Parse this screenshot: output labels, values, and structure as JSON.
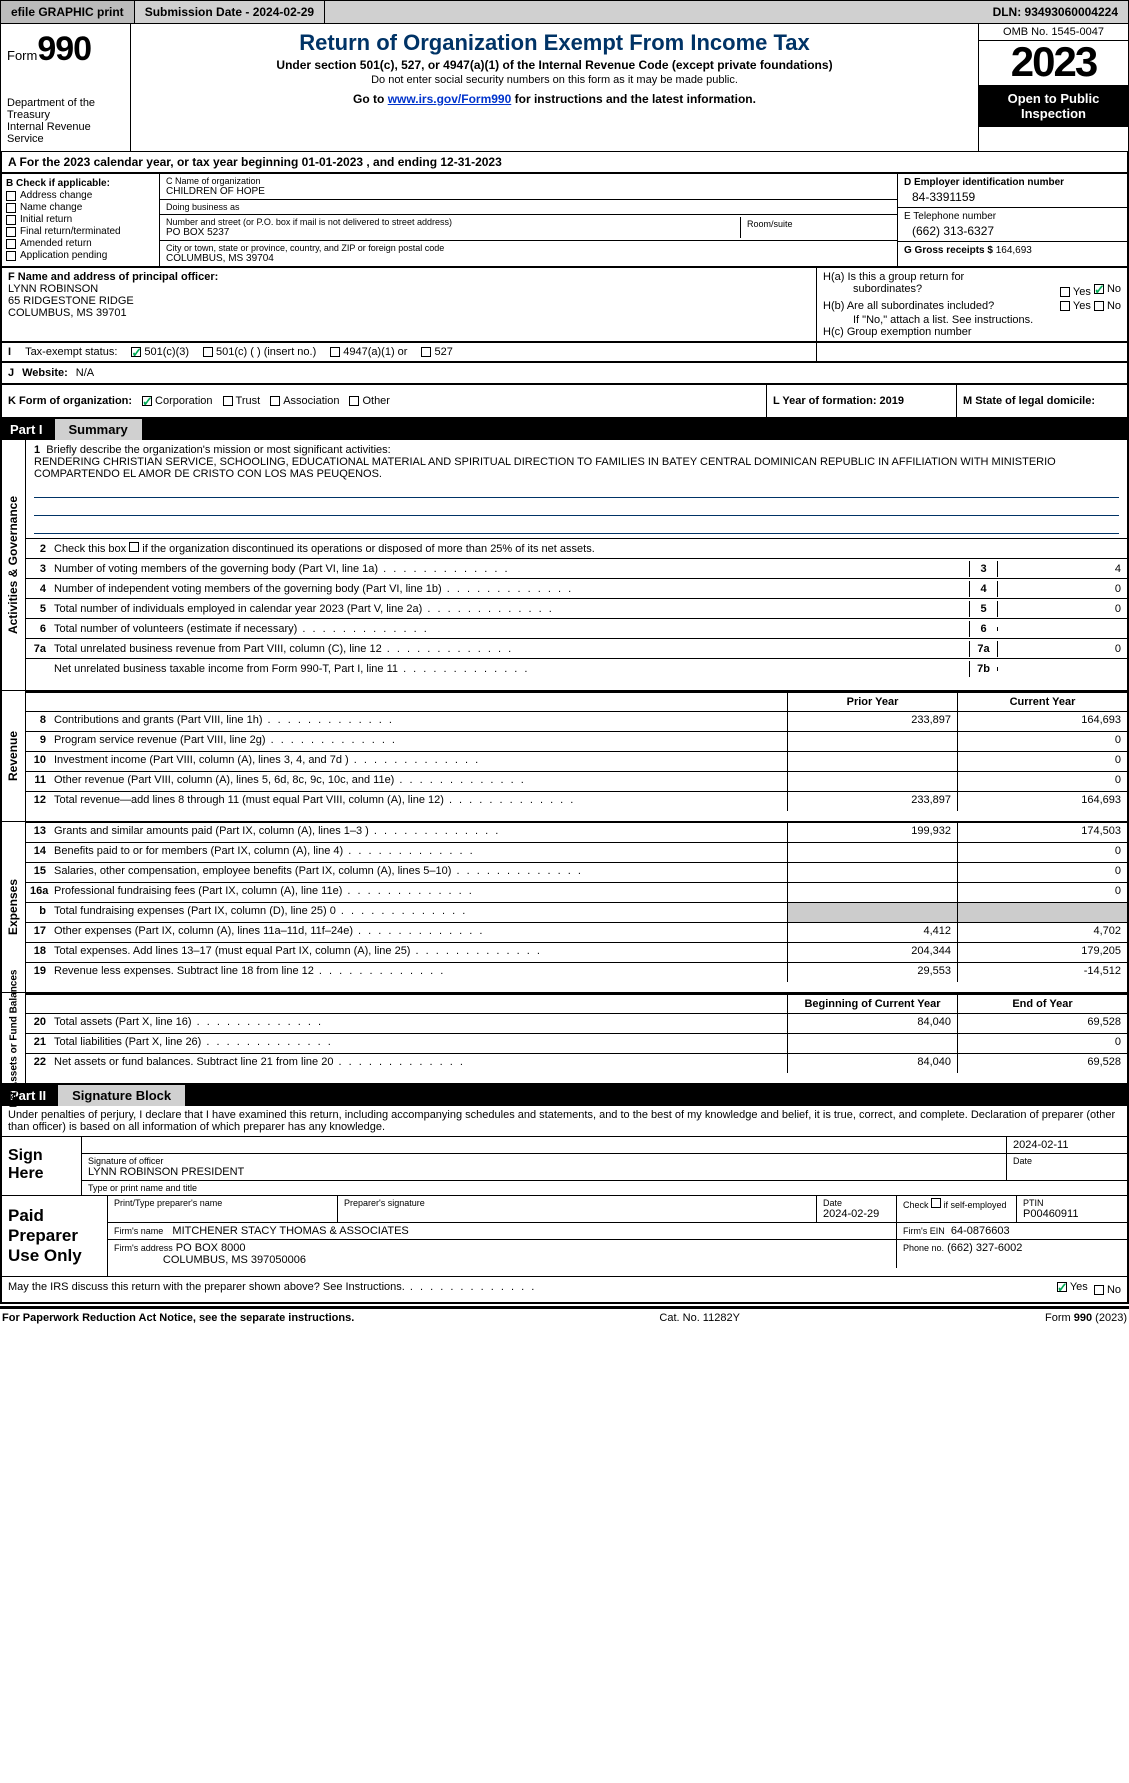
{
  "topbar": {
    "efile": "efile GRAPHIC print",
    "submission_label": "Submission Date - 2024-02-29",
    "dln_label": "DLN: 93493060004224"
  },
  "header": {
    "form_word": "Form",
    "form_no": "990",
    "title": "Return of Organization Exempt From Income Tax",
    "subtitle": "Under section 501(c), 527, or 4947(a)(1) of the Internal Revenue Code (except private foundations)",
    "note": "Do not enter social security numbers on this form as it may be made public.",
    "goto_pre": "Go to ",
    "goto_link": "www.irs.gov/Form990",
    "goto_post": " for instructions and the latest information.",
    "dept": "Department of the Treasury",
    "irs": "Internal Revenue Service",
    "omb": "OMB No. 1545-0047",
    "year": "2023",
    "open1": "Open to Public",
    "open2": "Inspection"
  },
  "period": "A  For the 2023 calendar year, or tax year beginning 01-01-2023        , and ending 12-31-2023",
  "B": {
    "head": "B Check if applicable:",
    "opts": [
      "Address change",
      "Name change",
      "Initial return",
      "Final return/terminated",
      "Amended return",
      "Application pending"
    ]
  },
  "C": {
    "name_lbl": "C Name of organization",
    "name": "CHILDREN OF HOPE",
    "dba_lbl": "Doing business as",
    "dba": "",
    "street_lbl": "Number and street (or P.O. box if mail is not delivered to street address)",
    "street": "PO BOX 5237",
    "room_lbl": "Room/suite",
    "city_lbl": "City or town, state or province, country, and ZIP or foreign postal code",
    "city": "COLUMBUS, MS  39704"
  },
  "D": {
    "lbl": "D Employer identification number",
    "val": "84-3391159"
  },
  "E": {
    "lbl": "E Telephone number",
    "val": "(662) 313-6327"
  },
  "G": {
    "lbl": "G Gross receipts $",
    "val": "164,693"
  },
  "F": {
    "lbl": "F  Name and address of principal officer:",
    "l1": "LYNN ROBINSON",
    "l2": "65 RIDGESTONE RIDGE",
    "l3": "COLUMBUS, MS  39701"
  },
  "H": {
    "a": "H(a)  Is this a group return for",
    "a2": "subordinates?",
    "b": "H(b)  Are all subordinates included?",
    "bnote": "If \"No,\" attach a list. See instructions.",
    "c": "H(c)  Group exemption number",
    "yes": "Yes",
    "no": "No"
  },
  "I": {
    "lbl": "I",
    "txt": "Tax-exempt status:",
    "o1": "501(c)(3)",
    "o2": "501(c) (  ) (insert no.)",
    "o3": "4947(a)(1) or",
    "o4": "527"
  },
  "J": {
    "lbl": "J",
    "txt": "Website:",
    "val": "N/A"
  },
  "K": {
    "lbl": "K Form of organization:",
    "o1": "Corporation",
    "o2": "Trust",
    "o3": "Association",
    "o4": "Other"
  },
  "L": {
    "lbl": "L Year of formation: 2019"
  },
  "M": {
    "lbl": "M State of legal domicile:"
  },
  "part1": {
    "num": "Part I",
    "title": "Summary"
  },
  "s1": {
    "n": "1",
    "t": "Briefly describe the organization's mission or most significant activities:",
    "m": "RENDERING CHRISTIAN SERVICE, SCHOOLING, EDUCATIONAL MATERIAL AND SPIRITUAL DIRECTION TO FAMILIES IN BATEY CENTRAL DOMINICAN REPUBLIC IN AFFILIATION WITH MINISTERIO COMPARTENDO EL AMOR DE CRISTO CON LOS MAS PEUQENOS."
  },
  "s2": {
    "n": "2",
    "t": "Check this box            if the organization discontinued its operations or disposed of more than 25% of its net assets."
  },
  "r3": {
    "n": "3",
    "t": "Number of voting members of the governing body (Part VI, line 1a)",
    "b": "3",
    "v": "4"
  },
  "r4": {
    "n": "4",
    "t": "Number of independent voting members of the governing body (Part VI, line 1b)",
    "b": "4",
    "v": "0"
  },
  "r5": {
    "n": "5",
    "t": "Total number of individuals employed in calendar year 2023 (Part V, line 2a)",
    "b": "5",
    "v": "0"
  },
  "r6": {
    "n": "6",
    "t": "Total number of volunteers (estimate if necessary)",
    "b": "6",
    "v": ""
  },
  "r7a": {
    "n": "7a",
    "t": "Total unrelated business revenue from Part VIII, column (C), line 12",
    "b": "7a",
    "v": "0"
  },
  "r7b": {
    "n": "",
    "t": "Net unrelated business taxable income from Form 990-T, Part I, line 11",
    "b": "7b",
    "v": ""
  },
  "vh": {
    "ag": "Activities & Governance",
    "rev": "Revenue",
    "exp": "Expenses",
    "nab": "Net Assets or Fund Balances"
  },
  "cols": {
    "py": "Prior Year",
    "cy": "Current Year",
    "bcy": "Beginning of Current Year",
    "eoy": "End of Year"
  },
  "rev": [
    {
      "n": "8",
      "t": "Contributions and grants (Part VIII, line 1h)",
      "p": "233,897",
      "c": "164,693"
    },
    {
      "n": "9",
      "t": "Program service revenue (Part VIII, line 2g)",
      "p": "",
      "c": "0"
    },
    {
      "n": "10",
      "t": "Investment income (Part VIII, column (A), lines 3, 4, and 7d )",
      "p": "",
      "c": "0"
    },
    {
      "n": "11",
      "t": "Other revenue (Part VIII, column (A), lines 5, 6d, 8c, 9c, 10c, and 11e)",
      "p": "",
      "c": "0"
    },
    {
      "n": "12",
      "t": "Total revenue—add lines 8 through 11 (must equal Part VIII, column (A), line 12)",
      "p": "233,897",
      "c": "164,693"
    }
  ],
  "exp": [
    {
      "n": "13",
      "t": "Grants and similar amounts paid (Part IX, column (A), lines 1–3 )",
      "p": "199,932",
      "c": "174,503"
    },
    {
      "n": "14",
      "t": "Benefits paid to or for members (Part IX, column (A), line 4)",
      "p": "",
      "c": "0"
    },
    {
      "n": "15",
      "t": "Salaries, other compensation, employee benefits (Part IX, column (A), lines 5–10)",
      "p": "",
      "c": "0"
    },
    {
      "n": "16a",
      "t": "Professional fundraising fees (Part IX, column (A), line 11e)",
      "p": "",
      "c": "0"
    },
    {
      "n": "b",
      "t": "Total fundraising expenses (Part IX, column (D), line 25) 0",
      "p": "shade",
      "c": "shade"
    },
    {
      "n": "17",
      "t": "Other expenses (Part IX, column (A), lines 11a–11d, 11f–24e)",
      "p": "4,412",
      "c": "4,702"
    },
    {
      "n": "18",
      "t": "Total expenses. Add lines 13–17 (must equal Part IX, column (A), line 25)",
      "p": "204,344",
      "c": "179,205"
    },
    {
      "n": "19",
      "t": "Revenue less expenses. Subtract line 18 from line 12",
      "p": "29,553",
      "c": "-14,512"
    }
  ],
  "nab": [
    {
      "n": "20",
      "t": "Total assets (Part X, line 16)",
      "p": "84,040",
      "c": "69,528"
    },
    {
      "n": "21",
      "t": "Total liabilities (Part X, line 26)",
      "p": "",
      "c": "0"
    },
    {
      "n": "22",
      "t": "Net assets or fund balances. Subtract line 21 from line 20",
      "p": "84,040",
      "c": "69,528"
    }
  ],
  "part2": {
    "num": "Part II",
    "title": "Signature Block"
  },
  "sig": {
    "decl": "Under penalties of perjury, I declare that I have examined this return, including accompanying schedules and statements, and to the best of my knowledge and belief, it is true, correct, and complete. Declaration of preparer (other than officer) is based on all information of which preparer has any knowledge.",
    "sign_here": "Sign Here",
    "date": "2024-02-11",
    "sig_lbl": "Signature of officer",
    "date_lbl": "Date",
    "officer": "LYNN ROBINSON  PRESIDENT",
    "type_lbl": "Type or print name and title",
    "paid": "Paid Preparer Use Only",
    "pn_lbl": "Print/Type preparer's name",
    "ps_lbl": "Preparer's signature",
    "pdate_lbl": "Date",
    "pdate": "2024-02-29",
    "check_lbl": "Check           if self-employed",
    "ptin_lbl": "PTIN",
    "ptin": "P00460911",
    "firm_lbl": "Firm's name",
    "firm": "MITCHENER STACY THOMAS & ASSOCIATES",
    "fein_lbl": "Firm's EIN",
    "fein": "64-0876603",
    "faddr_lbl": "Firm's address",
    "faddr": "PO BOX 8000",
    "faddr2": "COLUMBUS, MS  397050006",
    "phone_lbl": "Phone no.",
    "phone": "(662) 327-6002",
    "discuss": "May the IRS discuss this return with the preparer shown above? See Instructions."
  },
  "footer": {
    "l": "For Paperwork Reduction Act Notice, see the separate instructions.",
    "m": "Cat. No. 11282Y",
    "r": "Form 990 (2023)"
  }
}
